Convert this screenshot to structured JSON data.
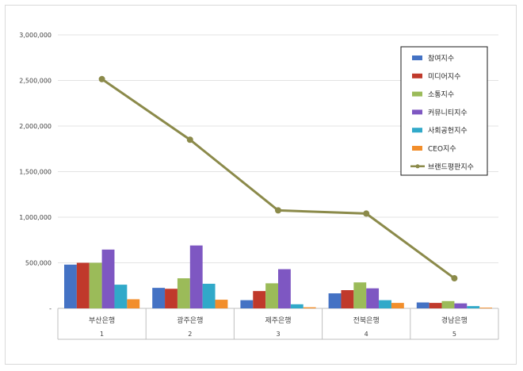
{
  "chart_data": {
    "type": "bar",
    "categories": [
      "부산은행",
      "광주은행",
      "제주은행",
      "전북은행",
      "경남은행"
    ],
    "category_numbers": [
      "1",
      "2",
      "3",
      "4",
      "5"
    ],
    "ylim": [
      0,
      3000000
    ],
    "yticks": [
      {
        "value": 0,
        "label": "-"
      },
      {
        "value": 500000,
        "label": "500,000"
      },
      {
        "value": 1000000,
        "label": "1,000,000"
      },
      {
        "value": 1500000,
        "label": "1,500,000"
      },
      {
        "value": 2000000,
        "label": "2,000,000"
      },
      {
        "value": 2500000,
        "label": "2,500,000"
      },
      {
        "value": 3000000,
        "label": "3,000,000"
      }
    ],
    "grid": true,
    "legend_position": "top-right",
    "series": [
      {
        "name": "참여지수",
        "kind": "bar",
        "color": "#4472c4",
        "values": [
          480000,
          225000,
          90000,
          165000,
          65000
        ]
      },
      {
        "name": "미디어지수",
        "kind": "bar",
        "color": "#c0392b",
        "values": [
          500000,
          215000,
          190000,
          200000,
          60000
        ]
      },
      {
        "name": "소통지수",
        "kind": "bar",
        "color": "#9bbb59",
        "values": [
          500000,
          330000,
          275000,
          285000,
          80000
        ]
      },
      {
        "name": "커뮤니티지수",
        "kind": "bar",
        "color": "#7e57c2",
        "values": [
          645000,
          690000,
          430000,
          220000,
          55000
        ]
      },
      {
        "name": "사회공헌지수",
        "kind": "bar",
        "color": "#31a9c9",
        "values": [
          260000,
          270000,
          45000,
          90000,
          25000
        ]
      },
      {
        "name": "CEO지수",
        "kind": "bar",
        "color": "#f28e2b",
        "values": [
          100000,
          95000,
          12000,
          60000,
          8000
        ]
      },
      {
        "name": "브랜드평판지수",
        "kind": "line",
        "color": "#8b8a4a",
        "values": [
          2515000,
          1850000,
          1075000,
          1040000,
          330000
        ]
      }
    ]
  }
}
